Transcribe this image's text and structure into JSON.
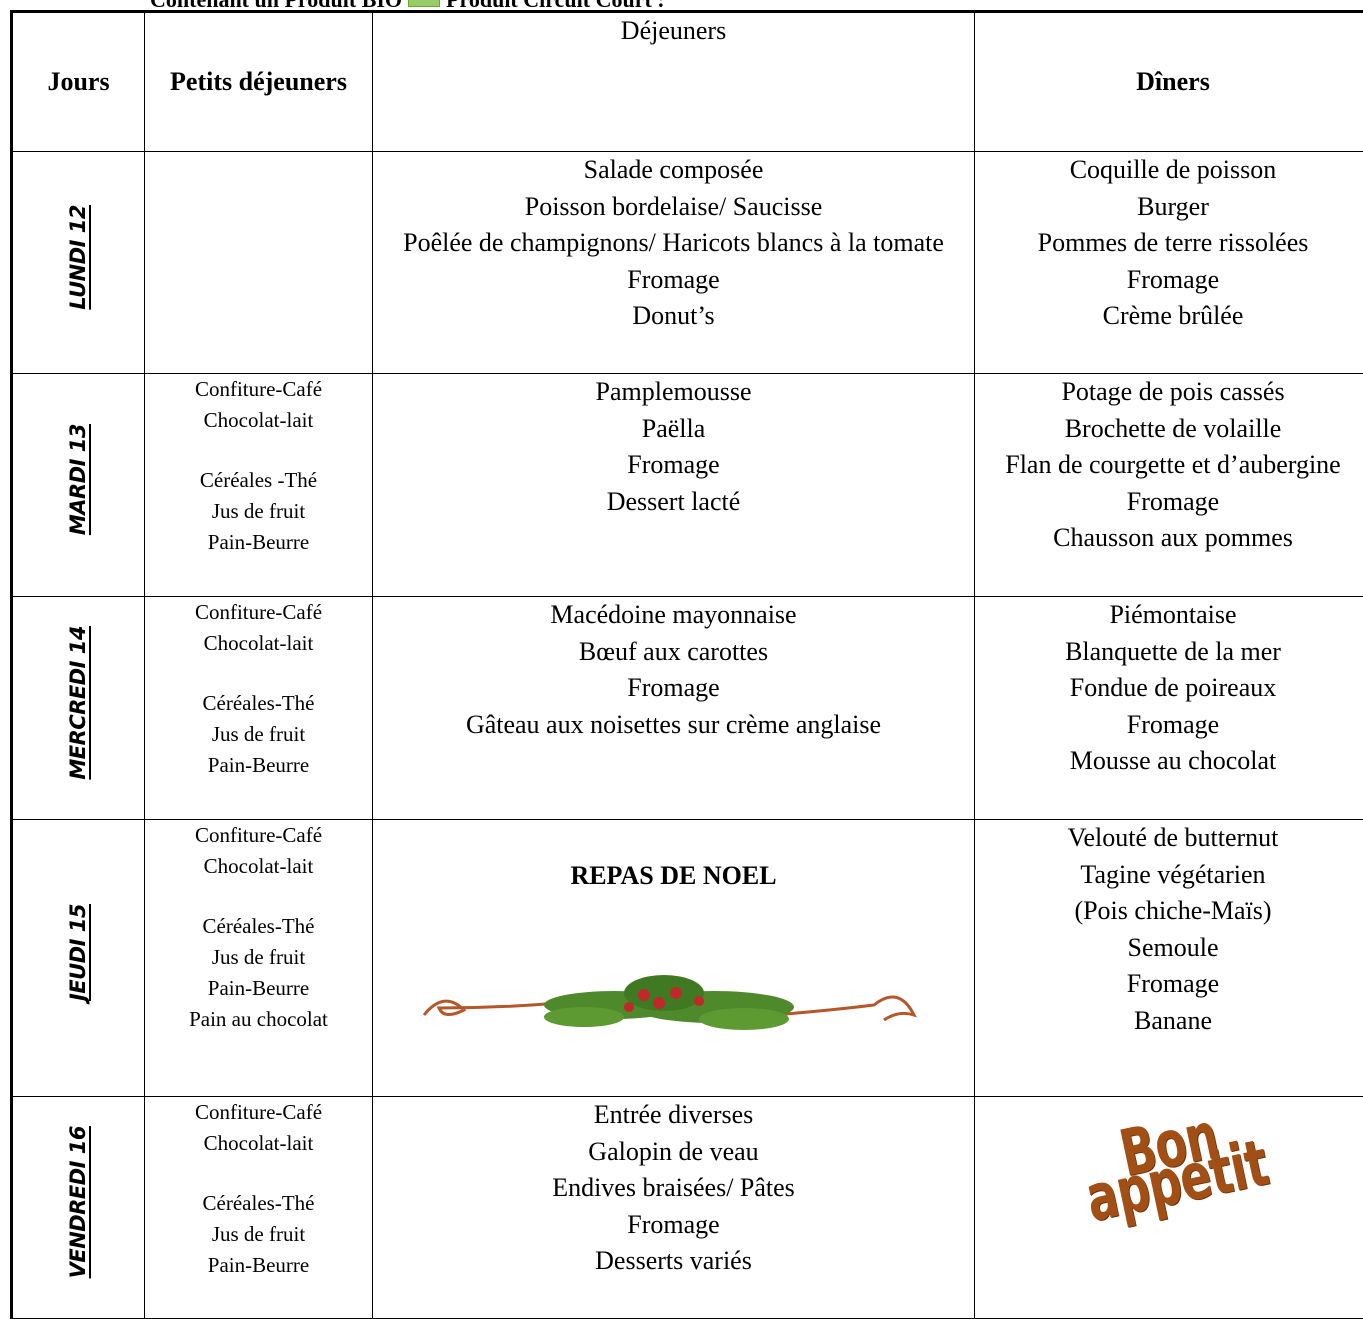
{
  "header": {
    "text_before": "Contenant un Produit BIO",
    "text_after": "Produit Circuit Court :"
  },
  "table": {
    "headers": [
      "Jours",
      "Petits déjeuners",
      "Déjeuners",
      "Dîners"
    ],
    "rows": [
      {
        "day": "LUNDI 12",
        "lunch": [
          "Salade composée",
          "Poisson bordelaise/ Saucisse",
          "Poêlée de champignons/ Haricots blancs à la tomate",
          "Fromage",
          "Donut’s"
        ],
        "dinner": [
          "Coquille de poisson",
          "Burger",
          "Pommes de terre rissolées",
          "Fromage",
          "Crème brûlée"
        ]
      },
      {
        "day": "MARDI 13",
        "breakfast": [
          "Confiture-Café",
          "Chocolat-lait",
          "Céréales -Thé",
          "Jus de fruit",
          "Pain-Beurre"
        ],
        "lunch": [
          "Pamplemousse",
          "Paëlla",
          "Fromage",
          "Dessert lacté"
        ],
        "dinner": [
          "Potage de pois cassés",
          "Brochette de volaille",
          "Flan de courgette et d’aubergine",
          "Fromage",
          "Chausson aux pommes"
        ]
      },
      {
        "day": "MERCREDI 14",
        "breakfast": [
          "Confiture-Café",
          "Chocolat-lait",
          "Céréales-Thé",
          "Jus de fruit",
          "Pain-Beurre"
        ],
        "lunch": [
          "Macédoine  mayonnaise",
          "Bœuf aux carottes",
          "Fromage",
          "Gâteau aux noisettes sur crème anglaise"
        ],
        "dinner": [
          "Piémontaise",
          "Blanquette de la mer",
          "Fondue de poireaux",
          "Fromage",
          "Mousse au chocolat"
        ]
      },
      {
        "day": "JEUDI 15",
        "breakfast": [
          "Confiture-Café",
          "Chocolat-lait",
          "Céréales-Thé",
          "Jus de fruit",
          "Pain-Beurre",
          "Pain au chocolat"
        ],
        "lunch_title": "REPAS DE NOEL",
        "dinner": [
          "Velouté de butternut",
          "Tagine végétarien",
          "(Pois chiche-Maïs)",
          "Semoule",
          "Fromage",
          "Banane"
        ]
      },
      {
        "day": "VENDREDI 16",
        "breakfast": [
          "Confiture-Café",
          "Chocolat-lait",
          "Céréales-Thé",
          "Jus de fruit",
          "Pain-Beurre"
        ],
        "lunch": [
          "Entrée diverses",
          "Galopin de veau",
          "Endives braisées/ Pâtes",
          "Fromage",
          "Desserts variés"
        ],
        "dinner_banner": "Bon appetit"
      }
    ]
  }
}
